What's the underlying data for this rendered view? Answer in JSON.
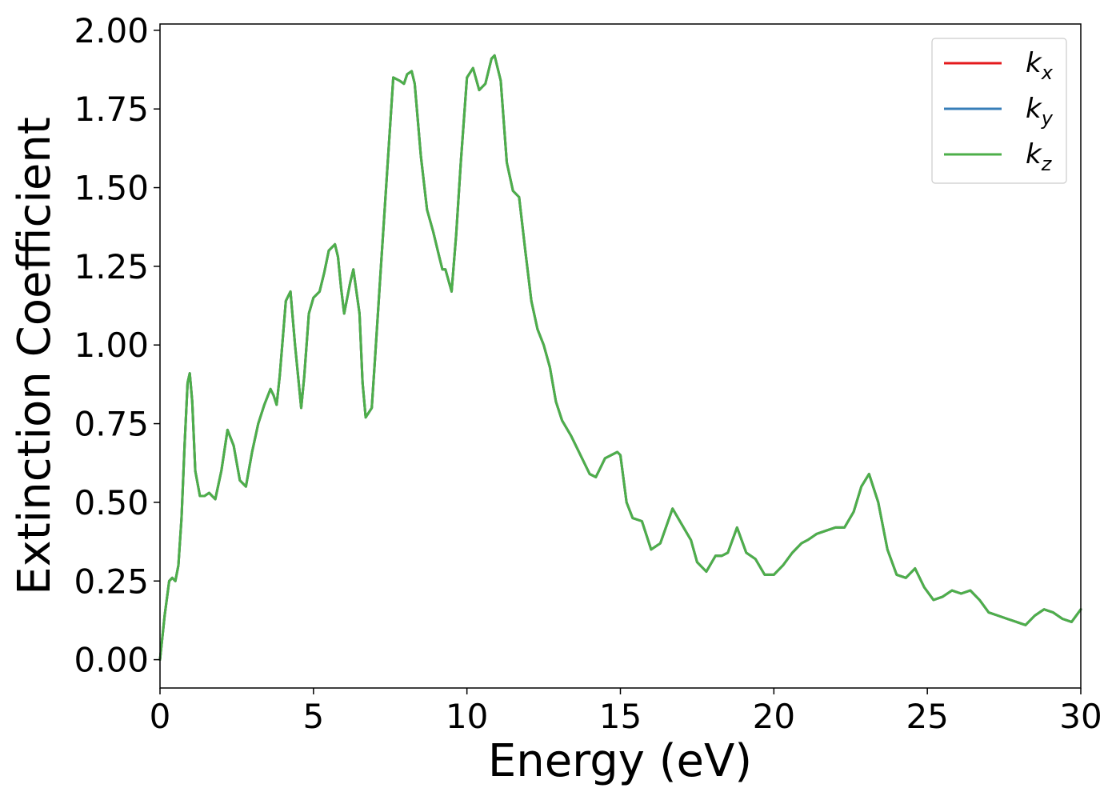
{
  "chart_data": {
    "type": "line",
    "xlabel": "Energy (eV)",
    "ylabel": "Extinction Coefficient",
    "xlim": [
      0,
      30
    ],
    "ylim": [
      -0.09,
      2.02
    ],
    "xticks": [
      "0",
      "5",
      "10",
      "15",
      "20",
      "25",
      "30"
    ],
    "yticks": [
      "0.00",
      "0.25",
      "0.50",
      "0.75",
      "1.00",
      "1.25",
      "1.50",
      "1.75",
      "2.00"
    ],
    "grid": false,
    "legend_position": "top-right",
    "series": [
      {
        "name": "k_x",
        "label_base": "k",
        "label_sub": "x",
        "color": "#e41a1c"
      },
      {
        "name": "k_y",
        "label_base": "k",
        "label_sub": "y",
        "color": "#377eb8"
      },
      {
        "name": "k_z",
        "label_base": "k",
        "label_sub": "z",
        "color": "#4daf4a"
      }
    ],
    "x": [
      0.0,
      0.15,
      0.3,
      0.4,
      0.5,
      0.6,
      0.7,
      0.8,
      0.9,
      0.97,
      1.05,
      1.15,
      1.3,
      1.45,
      1.6,
      1.8,
      2.0,
      2.2,
      2.4,
      2.6,
      2.8,
      3.0,
      3.2,
      3.4,
      3.6,
      3.7,
      3.8,
      3.9,
      4.1,
      4.25,
      4.4,
      4.6,
      4.7,
      4.85,
      5.0,
      5.2,
      5.35,
      5.5,
      5.7,
      5.8,
      5.9,
      6.0,
      6.2,
      6.3,
      6.5,
      6.6,
      6.7,
      6.9,
      7.0,
      7.2,
      7.4,
      7.6,
      7.8,
      7.95,
      8.05,
      8.2,
      8.3,
      8.5,
      8.7,
      8.9,
      9.1,
      9.2,
      9.3,
      9.5,
      9.65,
      9.8,
      10.0,
      10.2,
      10.4,
      10.6,
      10.8,
      10.9,
      11.1,
      11.3,
      11.5,
      11.7,
      11.9,
      12.1,
      12.3,
      12.5,
      12.7,
      12.9,
      13.1,
      13.4,
      13.7,
      14.0,
      14.2,
      14.35,
      14.5,
      14.7,
      14.9,
      15.0,
      15.2,
      15.4,
      15.7,
      16.0,
      16.3,
      16.7,
      17.0,
      17.3,
      17.5,
      17.8,
      18.1,
      18.3,
      18.5,
      18.8,
      19.1,
      19.4,
      19.7,
      20.0,
      20.3,
      20.6,
      20.9,
      21.1,
      21.4,
      21.7,
      22.0,
      22.3,
      22.6,
      22.85,
      23.1,
      23.4,
      23.7,
      24.0,
      24.3,
      24.6,
      24.9,
      25.2,
      25.5,
      25.8,
      26.1,
      26.4,
      26.7,
      27.0,
      27.3,
      27.6,
      28.2,
      28.5,
      28.8,
      29.1,
      29.4,
      29.7,
      30.0
    ],
    "y": [
      0.0,
      0.14,
      0.25,
      0.26,
      0.25,
      0.3,
      0.45,
      0.68,
      0.88,
      0.91,
      0.82,
      0.6,
      0.52,
      0.52,
      0.53,
      0.51,
      0.6,
      0.73,
      0.68,
      0.57,
      0.55,
      0.66,
      0.75,
      0.81,
      0.86,
      0.84,
      0.81,
      0.9,
      1.14,
      1.17,
      1.0,
      0.8,
      0.9,
      1.1,
      1.15,
      1.17,
      1.23,
      1.3,
      1.32,
      1.28,
      1.18,
      1.1,
      1.2,
      1.24,
      1.1,
      0.88,
      0.77,
      0.8,
      0.95,
      1.25,
      1.55,
      1.85,
      1.84,
      1.83,
      1.86,
      1.87,
      1.83,
      1.6,
      1.43,
      1.36,
      1.28,
      1.24,
      1.24,
      1.17,
      1.35,
      1.58,
      1.85,
      1.88,
      1.81,
      1.83,
      1.91,
      1.92,
      1.84,
      1.58,
      1.49,
      1.47,
      1.3,
      1.14,
      1.05,
      1.0,
      0.93,
      0.82,
      0.76,
      0.71,
      0.65,
      0.59,
      0.58,
      0.61,
      0.64,
      0.65,
      0.66,
      0.65,
      0.5,
      0.45,
      0.44,
      0.35,
      0.37,
      0.48,
      0.43,
      0.38,
      0.31,
      0.28,
      0.33,
      0.33,
      0.34,
      0.42,
      0.34,
      0.32,
      0.27,
      0.27,
      0.3,
      0.34,
      0.37,
      0.38,
      0.4,
      0.41,
      0.42,
      0.42,
      0.47,
      0.55,
      0.59,
      0.5,
      0.35,
      0.27,
      0.26,
      0.29,
      0.23,
      0.19,
      0.2,
      0.22,
      0.21,
      0.22,
      0.19,
      0.15,
      0.14,
      0.13,
      0.11,
      0.14,
      0.16,
      0.15,
      0.13,
      0.12,
      0.16
    ]
  }
}
